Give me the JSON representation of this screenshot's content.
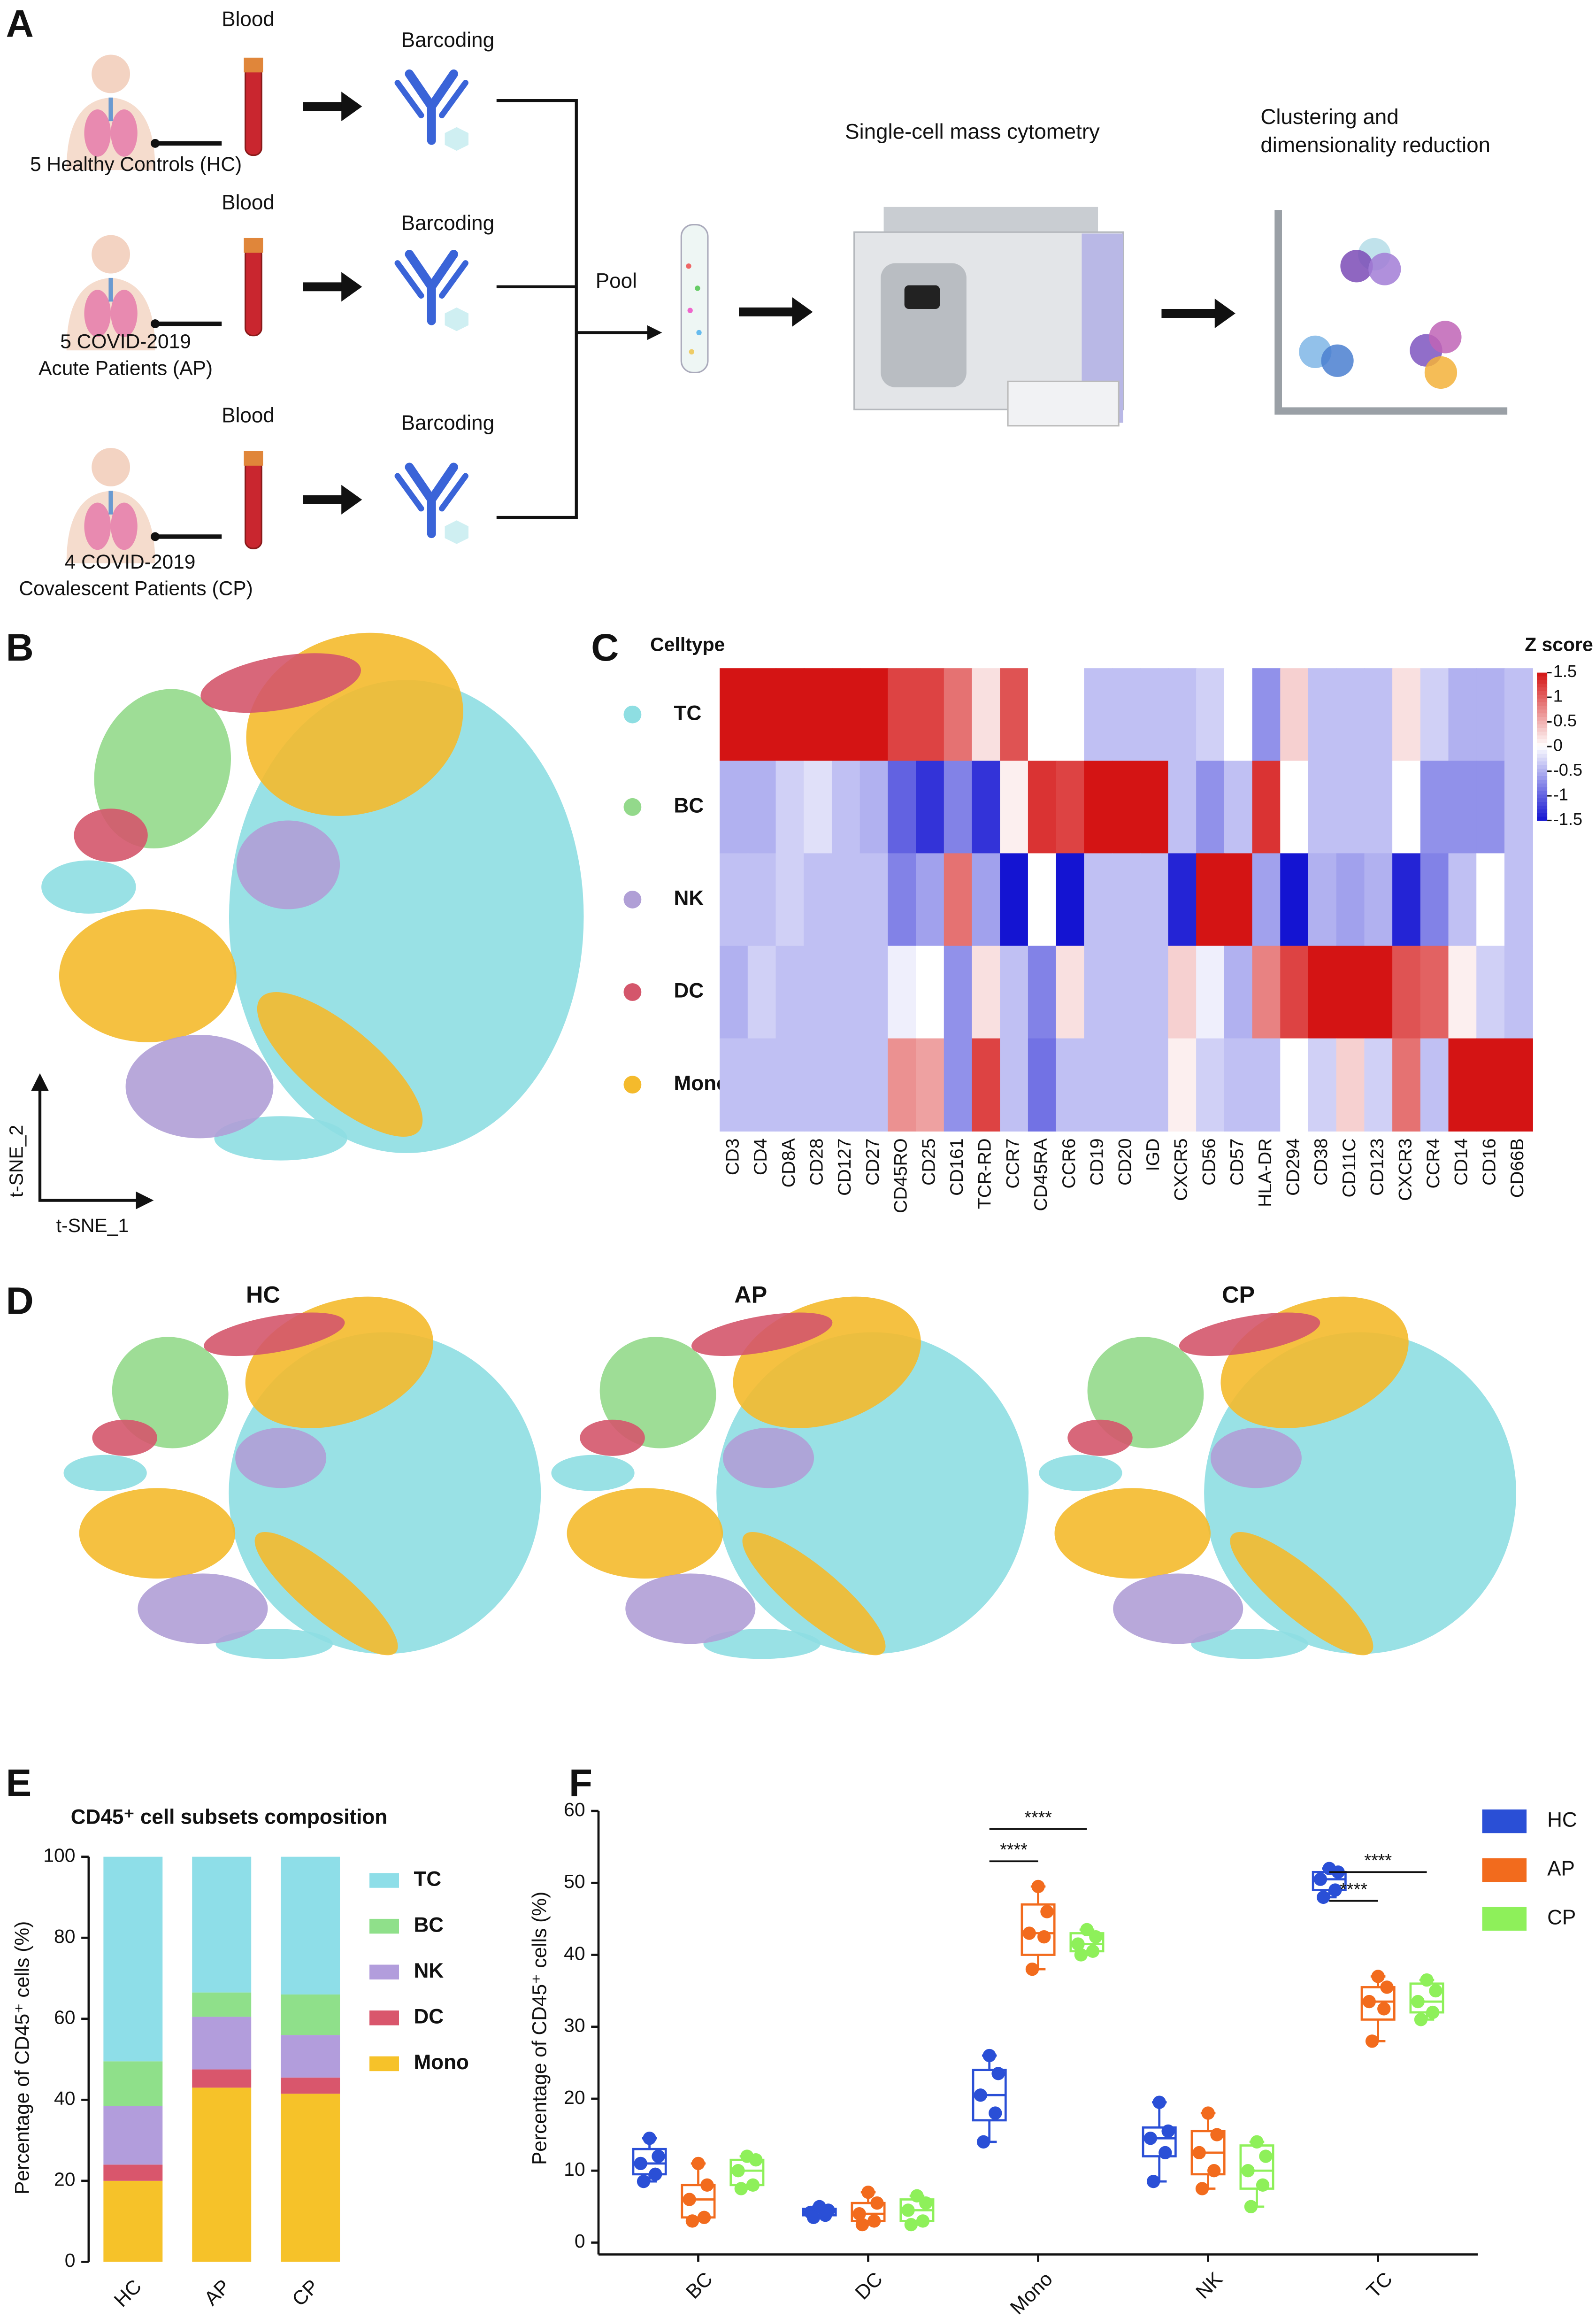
{
  "panel_labels": [
    "A",
    "B",
    "C",
    "D",
    "E",
    "F"
  ],
  "panel_a": {
    "blood": [
      "Blood",
      "Blood",
      "Blood"
    ],
    "barcoding": [
      "Barcoding",
      "Barcoding",
      "Barcoding"
    ],
    "hc_label": [
      "5 Healthy Controls (HC)"
    ],
    "ap_label": [
      "5 COVID-2019",
      "Acute Patients (AP)"
    ],
    "cp_label": [
      "4 COVID-2019",
      "Covalescent Patients (CP)"
    ],
    "pool": "Pool",
    "cytometry": "Single-cell mass cytometry",
    "clustering": [
      "Clustering and",
      "dimensionality reduction"
    ]
  },
  "panel_b": {
    "xlabel": "t-SNE_1",
    "ylabel": "t-SNE_2"
  },
  "panel_d": {
    "titles": [
      "HC",
      "AP",
      "CP"
    ]
  },
  "chart_data": [
    {
      "type": "heatmap",
      "title": "Celltype",
      "rows": [
        "TC",
        "BC",
        "NK",
        "DC",
        "Mono"
      ],
      "row_colors": [
        "#8edee2",
        "#93d98b",
        "#b09fd6",
        "#d4566b",
        "#f4ba2c"
      ],
      "columns": [
        "CD3",
        "CD4",
        "CD8A",
        "CD28",
        "CD127",
        "CD27",
        "CD45RO",
        "CD25",
        "CD161",
        "TCR-RD",
        "CCR7",
        "CD45RA",
        "CCR6",
        "CD19",
        "CD20",
        "IGD",
        "CXCR5",
        "CD56",
        "CD57",
        "HLA-DR",
        "CD294",
        "CD38",
        "CD11C",
        "CD123",
        "CXCR3",
        "CCR4",
        "CD14",
        "CD16",
        "CD66B"
      ],
      "values": [
        [
          1.5,
          1.5,
          1.5,
          1.5,
          1.5,
          1.5,
          1.2,
          1.2,
          0.9,
          0.2,
          1.1,
          0,
          0,
          -0.4,
          -0.4,
          -0.4,
          -0.4,
          -0.3,
          0,
          -0.7,
          0.3,
          -0.4,
          -0.4,
          -0.4,
          0.2,
          -0.3,
          -0.5,
          -0.5,
          -0.4
        ],
        [
          -0.5,
          -0.5,
          -0.3,
          -0.2,
          -0.4,
          -0.5,
          -1.0,
          -1.3,
          -0.8,
          -1.3,
          0.1,
          1.3,
          1.2,
          1.5,
          1.5,
          1.5,
          -0.4,
          -0.7,
          -0.4,
          1.3,
          0,
          -0.4,
          -0.4,
          -0.4,
          0,
          -0.7,
          -0.7,
          -0.7,
          -0.4
        ],
        [
          -0.4,
          -0.4,
          -0.3,
          -0.4,
          -0.4,
          -0.4,
          -0.8,
          -0.6,
          0.9,
          -0.6,
          -1.5,
          0,
          -1.5,
          -0.4,
          -0.4,
          -0.4,
          -1.4,
          1.5,
          1.5,
          -0.6,
          -1.5,
          -0.5,
          -0.6,
          -0.5,
          -1.4,
          -0.8,
          -0.4,
          0,
          -0.4
        ],
        [
          -0.5,
          -0.3,
          -0.4,
          -0.4,
          -0.4,
          -0.4,
          -0.1,
          0,
          -0.7,
          0.2,
          -0.4,
          -0.8,
          0.2,
          -0.4,
          -0.4,
          -0.4,
          0.3,
          -0.1,
          -0.5,
          0.8,
          1.2,
          1.5,
          1.5,
          1.5,
          1.1,
          1.0,
          0.1,
          -0.3,
          -0.4
        ],
        [
          -0.4,
          -0.4,
          -0.4,
          -0.4,
          -0.4,
          -0.4,
          0.7,
          0.6,
          -0.7,
          1.2,
          -0.4,
          -0.9,
          -0.4,
          -0.4,
          -0.4,
          -0.4,
          0.1,
          -0.3,
          -0.4,
          -0.4,
          0,
          -0.3,
          0.3,
          -0.3,
          0.9,
          -0.4,
          1.5,
          1.5,
          1.5
        ]
      ],
      "colorbar": {
        "title": "Z score",
        "lim": [
          -1.5,
          1.5
        ],
        "ticks": [
          1.5,
          1,
          0.5,
          0,
          -0.5,
          -1,
          -1.5
        ],
        "colors": [
          "#1414d2",
          "#ffffff",
          "#d41414"
        ]
      }
    },
    {
      "type": "stacked_bar",
      "title": "CD45⁺ cell subsets composition",
      "ylabel": "Percentage of CD45⁺ cells (%)",
      "categories": [
        "HC",
        "AP",
        "CP"
      ],
      "series": [
        {
          "name": "TC",
          "color": "#8edee8",
          "label_color": "#e02020",
          "values": [
            50.5,
            33.5,
            34
          ]
        },
        {
          "name": "BC",
          "color": "#8fe08a",
          "values": [
            11,
            6,
            10
          ]
        },
        {
          "name": "NK",
          "color": "#b29ddc",
          "values": [
            14.5,
            13,
            10.5
          ]
        },
        {
          "name": "DC",
          "color": "#d9566c",
          "values": [
            4,
            4.5,
            4
          ]
        },
        {
          "name": "Mono",
          "color": "#f6c229",
          "label_color": "#e02020",
          "values": [
            20,
            43,
            41.5
          ]
        }
      ],
      "ylim": [
        0,
        100
      ],
      "yticks": [
        0,
        20,
        40,
        60,
        80,
        100
      ]
    },
    {
      "type": "box",
      "ylabel": "Percentage of CD45⁺ cells (%)",
      "categories": [
        "BC",
        "DC",
        "Mono",
        "NK",
        "TC"
      ],
      "series": [
        {
          "name": "HC",
          "color": "#2a4fd6",
          "boxes": [
            [
              8.5,
              9.5,
              11,
              13,
              14.5
            ],
            [
              3.5,
              3.8,
              4.2,
              4.7,
              5
            ],
            [
              14,
              17,
              20.5,
              24,
              26
            ],
            [
              8.5,
              12,
              14.5,
              16,
              19.5
            ],
            [
              48,
              49,
              50.5,
              51.5,
              52
            ]
          ],
          "points": [
            [
              14.5,
              12,
              11,
              9.5,
              8.5
            ],
            [
              5,
              4.5,
              4.2,
              3.8,
              3.5
            ],
            [
              26,
              23.5,
              20.5,
              18,
              14
            ],
            [
              19.5,
              15.5,
              14.5,
              12.5,
              8.5
            ],
            [
              52,
              51.5,
              50.5,
              49,
              48
            ]
          ]
        },
        {
          "name": "AP",
          "color": "#f26b1d",
          "boxes": [
            [
              3,
              3.5,
              6,
              8,
              11
            ],
            [
              2.5,
              3,
              4,
              5.5,
              7
            ],
            [
              38,
              40,
              43,
              47,
              49.5
            ],
            [
              7.5,
              9.5,
              12.5,
              15.5,
              18
            ],
            [
              28,
              31,
              33.5,
              35.5,
              37
            ]
          ],
          "points": [
            [
              11,
              8,
              6,
              3.5,
              3
            ],
            [
              7,
              5.5,
              4,
              3,
              2.5
            ],
            [
              49.5,
              46,
              43,
              42.5,
              38
            ],
            [
              18,
              15,
              12.5,
              10,
              7.5
            ],
            [
              37,
              35.5,
              33.5,
              32.5,
              28
            ]
          ]
        },
        {
          "name": "CP",
          "color": "#8ef05a",
          "boxes": [
            [
              7.5,
              8,
              10,
              11.5,
              12
            ],
            [
              2.5,
              3,
              4.5,
              6,
              6.5
            ],
            [
              40,
              40.5,
              41.5,
              43,
              43.5
            ],
            [
              5,
              7.5,
              10,
              13.5,
              14
            ],
            [
              31,
              32,
              33.5,
              36,
              36.5
            ]
          ],
          "points": [
            [
              12,
              11.5,
              10,
              8,
              7.5
            ],
            [
              6.5,
              5.5,
              4.5,
              3,
              2.5
            ],
            [
              43.5,
              42.5,
              41.5,
              40.5,
              40
            ],
            [
              14,
              12,
              10,
              8,
              5
            ],
            [
              36.5,
              35,
              33.5,
              32,
              31
            ]
          ]
        }
      ],
      "annotations": [
        {
          "text": "****",
          "category": 2,
          "groups": [
            0,
            1
          ],
          "y": 53
        },
        {
          "text": "****",
          "category": 2,
          "groups": [
            0,
            2
          ],
          "y": 57.5
        },
        {
          "text": "****",
          "category": 4,
          "groups": [
            0,
            1
          ],
          "y": 47.5
        },
        {
          "text": "****",
          "category": 4,
          "groups": [
            0,
            2
          ],
          "y": 51.5
        }
      ],
      "ylim": [
        0,
        60
      ],
      "yticks": [
        0,
        10,
        20,
        30,
        40,
        50,
        60
      ]
    }
  ]
}
